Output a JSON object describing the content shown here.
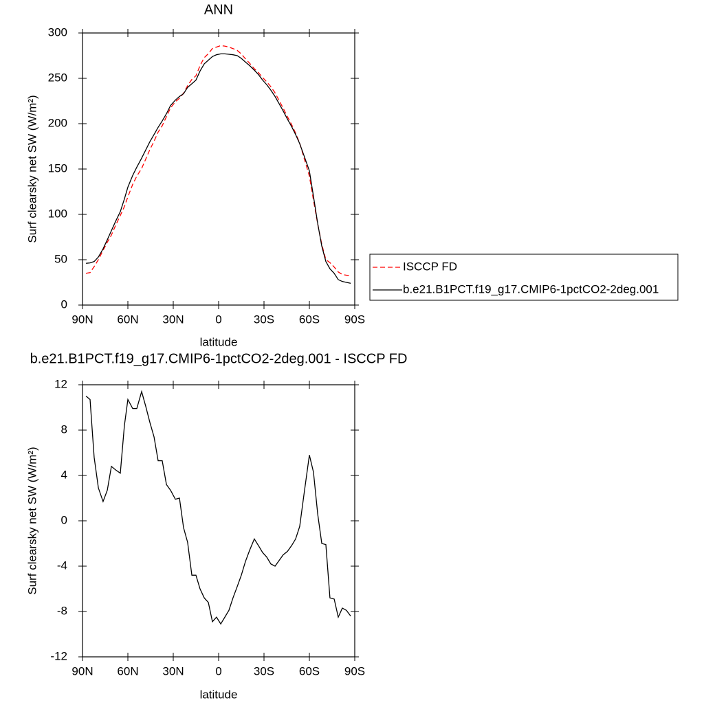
{
  "chart_data": [
    {
      "type": "line",
      "title": "ANN",
      "xlabel": "latitude",
      "ylabel": "Surf clearsky net SW (W/m²)",
      "x": [
        87.7,
        85,
        82.3,
        79.5,
        76.4,
        73.6,
        70.9,
        68.2,
        65,
        62.3,
        60,
        56.8,
        54.1,
        50.9,
        48.2,
        45.5,
        42.7,
        40,
        37.3,
        34.5,
        31.8,
        28.6,
        25.9,
        23.2,
        20.5,
        17.7,
        15,
        12.3,
        9.5,
        6.8,
        4.1,
        1.4,
        -1.4,
        -4.1,
        -6.8,
        -9.5,
        -12.3,
        -15,
        -17.7,
        -20.5,
        -23.6,
        -26.4,
        -29.1,
        -31.8,
        -34.5,
        -37.3,
        -40,
        -42.7,
        -45.5,
        -48.2,
        -50.9,
        -53.6,
        -56.4,
        -60,
        -62.7,
        -65.5,
        -68.2,
        -70.9,
        -73.6,
        -76.4,
        -79.1,
        -81.8,
        -84.5,
        -87.3
      ],
      "series": [
        {
          "name": "ISCCP FD",
          "color": "#ff0000",
          "dash": true,
          "values": [
            35,
            35.8,
            42.4,
            50.1,
            60.3,
            69.3,
            77.2,
            87.5,
            98.8,
            108.6,
            119.3,
            133.1,
            142.1,
            150.6,
            160.9,
            171.3,
            180.6,
            190.7,
            197.7,
            207.8,
            217.3,
            224.1,
            228,
            233.6,
            241.9,
            248.8,
            252.8,
            264,
            272.8,
            277.2,
            282.9,
            284.5,
            286.1,
            285.5,
            284.4,
            282.8,
            280.8,
            276.8,
            271.6,
            266.6,
            260.6,
            256.2,
            250.8,
            246.2,
            240.8,
            234,
            225.5,
            217,
            207.7,
            199.2,
            189.6,
            178.5,
            162.7,
            142.2,
            115.7,
            89.4,
            67,
            50.1,
            46.8,
            41.9,
            36.5,
            33.7,
            32.9,
            32.4
          ]
        },
        {
          "name": "b.e21.B1PCT.f19_g17.CMIP6-1pctCO2-2deg.001",
          "color": "#000000",
          "dash": false,
          "values": [
            46,
            46.5,
            48,
            53,
            62,
            72,
            82,
            92,
            103,
            117,
            130,
            143,
            152,
            162,
            171,
            180,
            188,
            196,
            203,
            211,
            220,
            226,
            230,
            233,
            240,
            244,
            248,
            258,
            266,
            270,
            274,
            276,
            277,
            277,
            276.5,
            276,
            275,
            272,
            268,
            264,
            259,
            254,
            248,
            243,
            237,
            230,
            222,
            214,
            205,
            197,
            188,
            178,
            165,
            148,
            120,
            90,
            65,
            48,
            40,
            35,
            28,
            26,
            25,
            24
          ]
        }
      ],
      "xlim": [
        90,
        -90
      ],
      "xticks": [
        {
          "value": 90,
          "label": "90N"
        },
        {
          "value": 60,
          "label": "60N"
        },
        {
          "value": 30,
          "label": "30N"
        },
        0,
        {
          "value": -30,
          "label": "30S"
        },
        {
          "value": -60,
          "label": "60S"
        },
        {
          "value": -90,
          "label": "90S"
        }
      ],
      "ylim": [
        0,
        300
      ],
      "yticks": [
        0,
        50,
        100,
        150,
        200,
        250,
        300
      ],
      "legend": "right"
    },
    {
      "type": "line",
      "title": "b.e21.B1PCT.f19_g17.CMIP6-1pctCO2-2deg.001 - ISCCP FD",
      "xlabel": "latitude",
      "ylabel": "Surf clearsky net SW (W/m²)",
      "x": [
        87.7,
        85,
        82.3,
        79.5,
        76.4,
        73.6,
        70.9,
        68.2,
        65,
        62.3,
        60,
        56.8,
        54.1,
        50.9,
        48.2,
        45.5,
        42.7,
        40,
        37.3,
        34.5,
        31.8,
        28.6,
        25.9,
        23.2,
        20.5,
        17.7,
        15,
        12.3,
        9.5,
        6.8,
        4.1,
        1.4,
        -1.4,
        -4.1,
        -6.8,
        -9.5,
        -12.3,
        -15,
        -17.7,
        -20.5,
        -23.6,
        -26.4,
        -29.1,
        -31.8,
        -34.5,
        -37.3,
        -40,
        -42.7,
        -45.5,
        -48.2,
        -50.9,
        -53.6,
        -56.4,
        -60,
        -62.7,
        -65.5,
        -68.2,
        -70.9,
        -73.6,
        -76.4,
        -79.1,
        -81.8,
        -84.5,
        -87.3
      ],
      "series": [
        {
          "color": "#000000",
          "dash": false,
          "values": [
            11,
            10.7,
            5.6,
            2.9,
            1.7,
            2.7,
            4.8,
            4.5,
            4.2,
            8.4,
            10.7,
            9.9,
            9.9,
            11.4,
            10.1,
            8.7,
            7.4,
            5.3,
            5.3,
            3.2,
            2.7,
            1.9,
            2,
            -0.6,
            -1.9,
            -4.8,
            -4.8,
            -6,
            -6.8,
            -7.2,
            -8.9,
            -8.5,
            -9.1,
            -8.5,
            -7.9,
            -6.8,
            -5.8,
            -4.8,
            -3.6,
            -2.6,
            -1.6,
            -2.2,
            -2.8,
            -3.2,
            -3.8,
            -4,
            -3.5,
            -3,
            -2.7,
            -2.2,
            -1.6,
            -0.5,
            2.3,
            5.8,
            4.3,
            0.6,
            -2,
            -2.1,
            -6.8,
            -6.9,
            -8.5,
            -7.7,
            -7.9,
            -8.4
          ]
        }
      ],
      "xlim": [
        90,
        -90
      ],
      "xticks": [
        {
          "value": 90,
          "label": "90N"
        },
        {
          "value": 60,
          "label": "60N"
        },
        {
          "value": 30,
          "label": "30N"
        },
        0,
        {
          "value": -30,
          "label": "30S"
        },
        {
          "value": -60,
          "label": "60S"
        },
        {
          "value": -90,
          "label": "90S"
        }
      ],
      "ylim": [
        -12,
        12
      ],
      "yticks": [
        -12,
        -8,
        -4,
        0,
        4,
        8,
        12
      ]
    }
  ]
}
